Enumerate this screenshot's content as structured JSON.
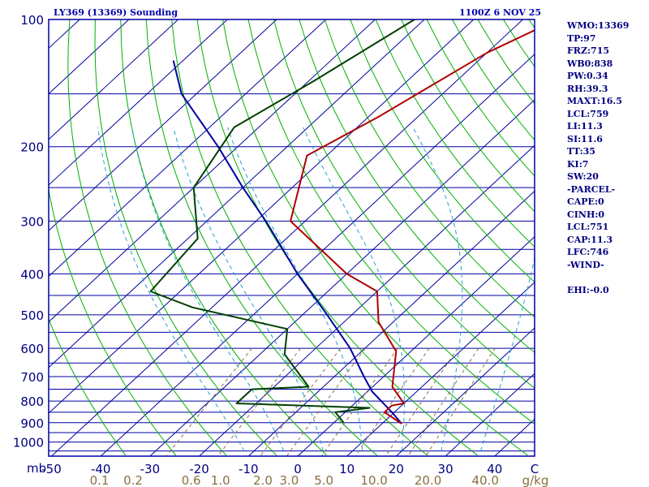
{
  "header": {
    "station": "LY369 (13369) Sounding",
    "datetime": "1100Z  6 NOV 25"
  },
  "indices": {
    "wmo": "WMO:13369",
    "tp": "TP:97",
    "frz": "FRZ:715",
    "wb0": "WB0:838",
    "pw": "PW:0.34",
    "rh": "RH:39.3",
    "maxt": "MAXT:16.5",
    "lcl": "LCL:759",
    "li": "LI:11.3",
    "si": "SI:11.6",
    "tt": "TT:35",
    "ki": "KI:7",
    "sw": "SW:20",
    "parcel_header": "-PARCEL-",
    "cape": "CAPE:0",
    "cinh": "CINH:0",
    "parcel_lcl": "LCL:751",
    "cap": "CAP:11.3",
    "lfc": "LFC:746",
    "wind_header": "-WIND-",
    "ehi": "EHI:-0.0"
  },
  "colors": {
    "border": "#0000a0",
    "isobar": "#0000a0",
    "isotherm": "#0000a0",
    "dry_adiabat": "#00b000",
    "moist_adiabat": "#20a0d0",
    "mixing_ratio": "#8a7040",
    "temperature": "#b00000",
    "dewpoint": "#004000",
    "parcel": "#0000a0",
    "label_blue": "#000080",
    "label_olive": "#8a7040"
  },
  "chart_data": {
    "type": "skew-t",
    "pressure_unit": "mb",
    "pressure_axis_label": "mb",
    "pressure_ticks": [
      {
        "p": 100,
        "label": "100"
      },
      {
        "p": 200,
        "label": "200"
      },
      {
        "p": 300,
        "label": "300"
      },
      {
        "p": 400,
        "label": "400"
      },
      {
        "p": 500,
        "label": "500"
      },
      {
        "p": 600,
        "label": "600"
      },
      {
        "p": 700,
        "label": "700"
      },
      {
        "p": 800,
        "label": "800"
      },
      {
        "p": 900,
        "label": "900"
      },
      {
        "p": 1000,
        "label": "1000"
      }
    ],
    "isobars": [
      150,
      200,
      250,
      300,
      350,
      400,
      450,
      500,
      550,
      600,
      650,
      700,
      750,
      800,
      850,
      900,
      950,
      1000,
      1050
    ],
    "temperature_ticks": [
      {
        "t": -50,
        "label": "-50"
      },
      {
        "t": -40,
        "label": "-40"
      },
      {
        "t": -30,
        "label": "-30"
      },
      {
        "t": -20,
        "label": "-20"
      },
      {
        "t": -10,
        "label": "-10"
      },
      {
        "t": 0,
        "label": "0"
      },
      {
        "t": 10,
        "label": "10"
      },
      {
        "t": 20,
        "label": "20"
      },
      {
        "t": 30,
        "label": "30"
      },
      {
        "t": 40,
        "label": "40"
      }
    ],
    "temperature_unit_label": "C",
    "mixing_ratio_ticks": [
      {
        "w": 0.1,
        "label": "0.1"
      },
      {
        "w": 0.2,
        "label": "0.2"
      },
      {
        "w": 0.6,
        "label": "0.6"
      },
      {
        "w": 1.0,
        "label": "1.0"
      },
      {
        "w": 2.0,
        "label": "2.0"
      },
      {
        "w": 3.0,
        "label": "3.0"
      },
      {
        "w": 5.0,
        "label": "5.0"
      },
      {
        "w": 10.0,
        "label": "10.0"
      },
      {
        "w": 20.0,
        "label": "20.0"
      },
      {
        "w": 40.0,
        "label": "40.0"
      }
    ],
    "mixing_ratio_unit": "g/kg",
    "temperature_profile": [
      {
        "p": 100,
        "t": -43
      },
      {
        "p": 120,
        "t": -50
      },
      {
        "p": 170,
        "t": -58
      },
      {
        "p": 210,
        "t": -64
      },
      {
        "p": 300,
        "t": -53
      },
      {
        "p": 400,
        "t": -30
      },
      {
        "p": 440,
        "t": -20
      },
      {
        "p": 520,
        "t": -13
      },
      {
        "p": 610,
        "t": -3
      },
      {
        "p": 740,
        "t": 4
      },
      {
        "p": 810,
        "t": 10
      },
      {
        "p": 820,
        "t": 8
      },
      {
        "p": 850,
        "t": 8
      },
      {
        "p": 905,
        "t": 14
      }
    ],
    "dewpoint_profile": [
      {
        "p": 100,
        "t": -72
      },
      {
        "p": 140,
        "t": -79
      },
      {
        "p": 180,
        "t": -85
      },
      {
        "p": 250,
        "t": -80
      },
      {
        "p": 330,
        "t": -68
      },
      {
        "p": 440,
        "t": -66
      },
      {
        "p": 480,
        "t": -54
      },
      {
        "p": 540,
        "t": -30
      },
      {
        "p": 620,
        "t": -25
      },
      {
        "p": 740,
        "t": -13
      },
      {
        "p": 750,
        "t": -24
      },
      {
        "p": 810,
        "t": -24
      },
      {
        "p": 830,
        "t": 4
      },
      {
        "p": 850,
        "t": -2
      },
      {
        "p": 900,
        "t": 2
      }
    ],
    "parcel_profile": [
      {
        "p": 905,
        "t": 14
      },
      {
        "p": 850,
        "t": 9.5
      },
      {
        "p": 760,
        "t": 1
      },
      {
        "p": 700,
        "t": -4
      },
      {
        "p": 600,
        "t": -13
      },
      {
        "p": 500,
        "t": -25
      },
      {
        "p": 400,
        "t": -40
      },
      {
        "p": 300,
        "t": -58
      },
      {
        "p": 250,
        "t": -70
      },
      {
        "p": 200,
        "t": -84
      },
      {
        "p": 150,
        "t": -103
      },
      {
        "p": 125,
        "t": -112
      }
    ],
    "moist_adiabat_params": [
      -12,
      -4,
      4,
      12,
      20,
      28,
      36
    ],
    "mixing_ratio_lines": [
      0.4,
      1,
      2,
      3,
      5,
      8,
      12,
      16,
      20
    ]
  }
}
